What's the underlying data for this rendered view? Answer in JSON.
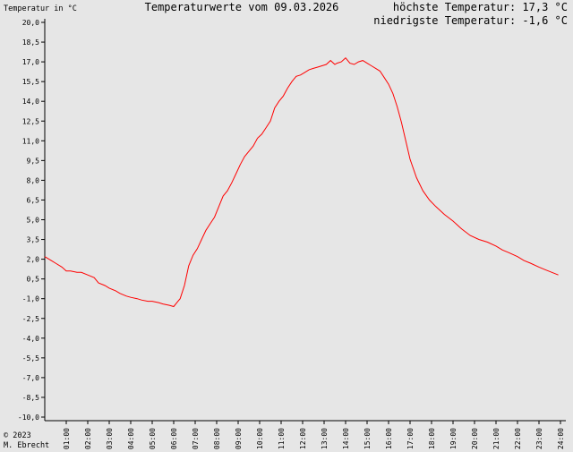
{
  "header": {
    "ylabel": "Temperatur in °C",
    "title": "Temperaturwerte vom 09.03.2026",
    "max_temp": "höchste Temperatur: 17,3 °C",
    "min_temp": "niedrigste Temperatur: -1,6 °C"
  },
  "footer": {
    "copyright": "© 2023",
    "author": "M. Ebrecht"
  },
  "colors": {
    "line": "#ff0000",
    "background": "#e6e6e6",
    "axis": "#000000"
  },
  "chart_data": {
    "type": "line",
    "title": "Temperaturwerte vom 09.03.2026",
    "ylabel": "Temperatur in °C",
    "xlabel": "",
    "ylim": [
      -10.0,
      20.0
    ],
    "xlim": [
      0,
      24
    ],
    "grid": false,
    "y_ticks": [
      "20,0",
      "18,5",
      "17,0",
      "15,5",
      "14,0",
      "12,5",
      "11,0",
      "9,5",
      "8,0",
      "6,5",
      "5,0",
      "3,5",
      "2,0",
      "0,5",
      "-1,0",
      "-2,5",
      "-4,0",
      "-5,5",
      "-7,0",
      "-8,5",
      "-10,0"
    ],
    "x_ticks": [
      "01:00",
      "02:00",
      "03:00",
      "04:00",
      "05:00",
      "06:00",
      "07:00",
      "08:00",
      "09:00",
      "10:00",
      "11:00",
      "12:00",
      "13:00",
      "14:00",
      "15:00",
      "16:00",
      "17:00",
      "18:00",
      "19:00",
      "20:00",
      "21:00",
      "22:00",
      "23:00",
      "24:00"
    ],
    "series": [
      {
        "x": [
          0.0,
          0.3,
          0.5,
          0.8,
          1.0,
          1.2,
          1.5,
          1.7,
          2.0,
          2.3,
          2.5,
          2.8,
          3.0,
          3.3,
          3.5,
          3.8,
          4.0,
          4.3,
          4.5,
          4.8,
          5.0,
          5.3,
          5.5,
          5.8,
          6.0,
          6.2,
          6.3,
          6.5,
          6.7,
          6.9,
          7.1,
          7.3,
          7.5,
          7.7,
          7.9,
          8.1,
          8.3,
          8.5,
          8.7,
          8.9,
          9.1,
          9.3,
          9.5,
          9.7,
          9.9,
          10.1,
          10.3,
          10.5,
          10.7,
          10.9,
          11.1,
          11.3,
          11.5,
          11.7,
          11.9,
          12.1,
          12.3,
          12.5,
          12.7,
          12.9,
          13.1,
          13.3,
          13.5,
          13.6,
          13.8,
          14.0,
          14.2,
          14.4,
          14.6,
          14.8,
          15.0,
          15.2,
          15.4,
          15.6,
          15.8,
          16.0,
          16.2,
          16.4,
          16.6,
          16.8,
          17.0,
          17.3,
          17.6,
          17.9,
          18.2,
          18.6,
          19.0,
          19.4,
          19.8,
          20.2,
          20.6,
          21.0,
          21.3,
          21.6,
          22.0,
          22.3,
          22.6,
          23.0,
          23.3,
          23.6,
          23.9
        ],
        "y": [
          2.2,
          1.9,
          1.7,
          1.4,
          1.1,
          1.1,
          1.0,
          1.0,
          0.8,
          0.6,
          0.2,
          0.0,
          -0.2,
          -0.4,
          -0.6,
          -0.8,
          -0.9,
          -1.0,
          -1.1,
          -1.2,
          -1.2,
          -1.3,
          -1.4,
          -1.5,
          -1.6,
          -1.2,
          -1.0,
          0.0,
          1.5,
          2.3,
          2.8,
          3.5,
          4.2,
          4.7,
          5.2,
          6.0,
          6.8,
          7.2,
          7.8,
          8.5,
          9.2,
          9.8,
          10.2,
          10.6,
          11.2,
          11.5,
          12.0,
          12.5,
          13.5,
          14.0,
          14.4,
          15.0,
          15.5,
          15.9,
          16.0,
          16.2,
          16.4,
          16.5,
          16.6,
          16.7,
          16.8,
          17.1,
          16.8,
          16.9,
          17.0,
          17.3,
          16.9,
          16.8,
          17.0,
          17.1,
          16.9,
          16.7,
          16.5,
          16.3,
          15.8,
          15.3,
          14.6,
          13.6,
          12.4,
          11.0,
          9.6,
          8.2,
          7.2,
          6.5,
          6.0,
          5.4,
          4.9,
          4.3,
          3.8,
          3.5,
          3.3,
          3.0,
          2.7,
          2.5,
          2.2,
          1.9,
          1.7,
          1.4,
          1.2,
          1.0,
          0.8
        ]
      }
    ]
  }
}
